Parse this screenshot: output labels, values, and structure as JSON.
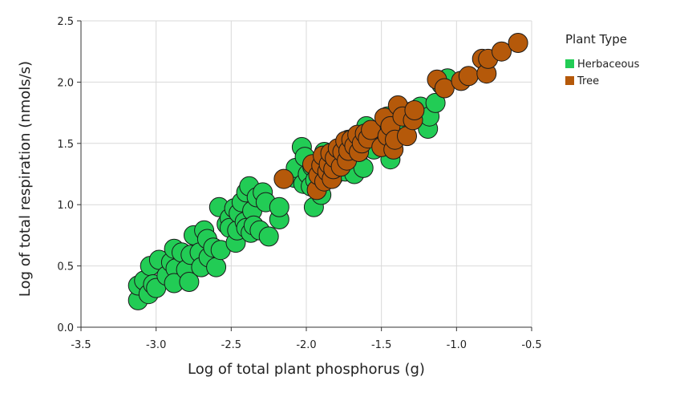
{
  "chart_data": {
    "type": "scatter",
    "title": "",
    "xlabel": "Log of total plant phosphorus (g)",
    "ylabel": "Log of total respiration (nmols/s)",
    "xlim": [
      -3.5,
      -0.5
    ],
    "ylim": [
      0,
      2.5
    ],
    "x_ticks": [
      -3.5,
      -3.0,
      -2.5,
      -2.0,
      -1.5,
      -1.0,
      -0.5
    ],
    "x_tick_labels": [
      "-3.5",
      "-3.0",
      "-2.5",
      "-2.0",
      "-1.5",
      "-1.0",
      "-0.5"
    ],
    "y_ticks": [
      0,
      0.5,
      1.0,
      1.5,
      2.0,
      2.5
    ],
    "y_tick_labels": [
      "0.0",
      "0.5",
      "1.0",
      "1.5",
      "2.0",
      "2.5"
    ],
    "grid": true,
    "legend": {
      "title": "Plant Type",
      "position": "right"
    },
    "series": [
      {
        "name": "Herbaceous",
        "color": "#22cc55",
        "points": [
          [
            -3.12,
            0.22
          ],
          [
            -3.12,
            0.34
          ],
          [
            -3.08,
            0.38
          ],
          [
            -3.05,
            0.27
          ],
          [
            -3.04,
            0.5
          ],
          [
            -3.02,
            0.35
          ],
          [
            -3.0,
            0.32
          ],
          [
            -2.98,
            0.55
          ],
          [
            -2.93,
            0.42
          ],
          [
            -2.9,
            0.53
          ],
          [
            -2.88,
            0.64
          ],
          [
            -2.87,
            0.48
          ],
          [
            -2.88,
            0.36
          ],
          [
            -2.83,
            0.61
          ],
          [
            -2.8,
            0.47
          ],
          [
            -2.78,
            0.37
          ],
          [
            -2.77,
            0.59
          ],
          [
            -2.75,
            0.75
          ],
          [
            -2.71,
            0.61
          ],
          [
            -2.7,
            0.49
          ],
          [
            -2.68,
            0.79
          ],
          [
            -2.66,
            0.72
          ],
          [
            -2.65,
            0.57
          ],
          [
            -2.62,
            0.65
          ],
          [
            -2.6,
            0.49
          ],
          [
            -2.58,
            0.98
          ],
          [
            -2.57,
            0.63
          ],
          [
            -2.53,
            0.84
          ],
          [
            -2.51,
            0.89
          ],
          [
            -2.51,
            0.81
          ],
          [
            -2.48,
            0.97
          ],
          [
            -2.47,
            0.69
          ],
          [
            -2.46,
            0.79
          ],
          [
            -2.45,
            0.93
          ],
          [
            -2.43,
            1.02
          ],
          [
            -2.41,
            0.86
          ],
          [
            -2.4,
            1.1
          ],
          [
            -2.4,
            0.81
          ],
          [
            -2.38,
            1.15
          ],
          [
            -2.37,
            0.77
          ],
          [
            -2.36,
            0.95
          ],
          [
            -2.35,
            0.83
          ],
          [
            -2.33,
            1.06
          ],
          [
            -2.31,
            0.79
          ],
          [
            -2.29,
            1.1
          ],
          [
            -2.27,
            1.02
          ],
          [
            -2.25,
            0.74
          ],
          [
            -2.18,
            0.88
          ],
          [
            -2.18,
            0.98
          ],
          [
            -2.08,
            1.22
          ],
          [
            -2.07,
            1.3
          ],
          [
            -2.03,
            1.47
          ],
          [
            -2.02,
            1.17
          ],
          [
            -2.01,
            1.39
          ],
          [
            -1.99,
            1.25
          ],
          [
            -1.97,
            1.15
          ],
          [
            -1.96,
            1.31
          ],
          [
            -1.95,
            0.98
          ],
          [
            -1.94,
            1.2
          ],
          [
            -1.91,
            1.33
          ],
          [
            -1.9,
            1.08
          ],
          [
            -1.88,
            1.43
          ],
          [
            -1.86,
            1.28
          ],
          [
            -1.84,
            1.35
          ],
          [
            -1.82,
            1.23
          ],
          [
            -1.8,
            1.44
          ],
          [
            -1.78,
            1.39
          ],
          [
            -1.76,
            1.34
          ],
          [
            -1.74,
            1.27
          ],
          [
            -1.72,
            1.53
          ],
          [
            -1.7,
            1.31
          ],
          [
            -1.68,
            1.25
          ],
          [
            -1.66,
            1.38
          ],
          [
            -1.64,
            1.52
          ],
          [
            -1.62,
            1.3
          ],
          [
            -1.6,
            1.64
          ],
          [
            -1.58,
            1.54
          ],
          [
            -1.55,
            1.45
          ],
          [
            -1.52,
            1.61
          ],
          [
            -1.48,
            1.49
          ],
          [
            -1.46,
            1.72
          ],
          [
            -1.44,
            1.37
          ],
          [
            -1.42,
            1.58
          ],
          [
            -1.38,
            1.64
          ],
          [
            -1.35,
            1.69
          ],
          [
            -1.3,
            1.76
          ],
          [
            -1.26,
            1.78
          ],
          [
            -1.24,
            1.8
          ],
          [
            -1.19,
            1.62
          ],
          [
            -1.18,
            1.72
          ],
          [
            -1.14,
            1.83
          ],
          [
            -1.1,
            1.98
          ],
          [
            -1.06,
            2.03
          ]
        ]
      },
      {
        "name": "Tree",
        "color": "#b5590a",
        "points": [
          [
            -2.15,
            1.21
          ],
          [
            -1.96,
            1.33
          ],
          [
            -1.93,
            1.12
          ],
          [
            -1.92,
            1.24
          ],
          [
            -1.9,
            1.32
          ],
          [
            -1.89,
            1.4
          ],
          [
            -1.88,
            1.19
          ],
          [
            -1.86,
            1.27
          ],
          [
            -1.85,
            1.33
          ],
          [
            -1.84,
            1.42
          ],
          [
            -1.83,
            1.21
          ],
          [
            -1.82,
            1.29
          ],
          [
            -1.81,
            1.38
          ],
          [
            -1.79,
            1.46
          ],
          [
            -1.77,
            1.31
          ],
          [
            -1.76,
            1.43
          ],
          [
            -1.74,
            1.52
          ],
          [
            -1.73,
            1.36
          ],
          [
            -1.72,
            1.44
          ],
          [
            -1.7,
            1.53
          ],
          [
            -1.68,
            1.48
          ],
          [
            -1.66,
            1.57
          ],
          [
            -1.65,
            1.43
          ],
          [
            -1.63,
            1.5
          ],
          [
            -1.61,
            1.58
          ],
          [
            -1.59,
            1.54
          ],
          [
            -1.57,
            1.61
          ],
          [
            -1.5,
            1.47
          ],
          [
            -1.48,
            1.71
          ],
          [
            -1.46,
            1.56
          ],
          [
            -1.44,
            1.64
          ],
          [
            -1.42,
            1.45
          ],
          [
            -1.41,
            1.53
          ],
          [
            -1.39,
            1.81
          ],
          [
            -1.36,
            1.72
          ],
          [
            -1.33,
            1.56
          ],
          [
            -1.29,
            1.69
          ],
          [
            -1.28,
            1.77
          ],
          [
            -1.13,
            2.02
          ],
          [
            -1.08,
            1.95
          ],
          [
            -0.97,
            2.01
          ],
          [
            -0.92,
            2.05
          ],
          [
            -0.83,
            2.19
          ],
          [
            -0.8,
            2.07
          ],
          [
            -0.79,
            2.19
          ],
          [
            -0.7,
            2.25
          ],
          [
            -0.59,
            2.32
          ]
        ]
      }
    ]
  }
}
